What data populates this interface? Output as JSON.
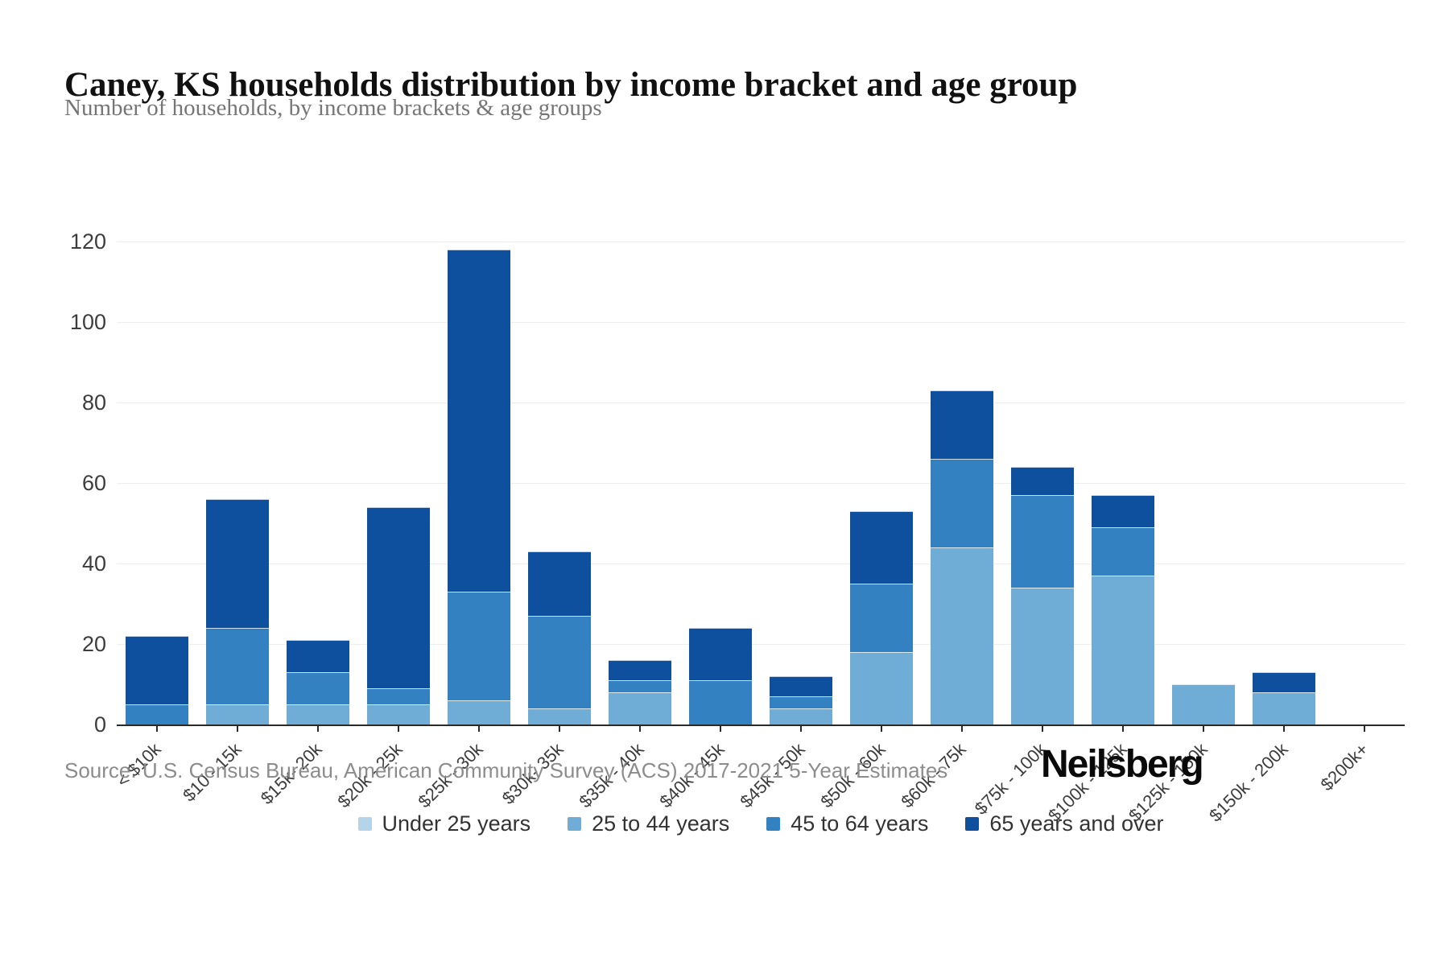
{
  "header": {
    "title": "Caney, KS households distribution by income bracket and age group",
    "subtitle": "Number of households, by income brackets & age groups"
  },
  "footer": {
    "source": "Source: U.S. Census Bureau, American Community Survey (ACS) 2017-2021 5-Year Estimates",
    "logo": "Neilsberg"
  },
  "colors": {
    "under_25": "#b5d4e9",
    "age_25_44": "#6fadd6",
    "age_45_64": "#3381c1",
    "age_65_over": "#0e4f9e",
    "gridline": "#ededed",
    "axis": "#2a2a2a"
  },
  "chart_data": {
    "type": "bar",
    "stacked": true,
    "title": "Caney, KS households distribution by income bracket and age group",
    "subtitle": "Number of households, by income brackets & age groups",
    "xlabel": "",
    "ylabel": "",
    "ylim": [
      0,
      120
    ],
    "yticks": [
      0,
      20,
      40,
      60,
      80,
      100,
      120
    ],
    "grid": true,
    "legend_position": "bottom",
    "categories": [
      "< $10k",
      "$10 - 15k",
      "$15k- 20k",
      "$20k - 25k",
      "$25k - 30k",
      "$30k- 35k",
      "$35k - 40k",
      "$40k - 45k",
      "$45k - 50k",
      "$50k - 60k",
      "$60k - 75k",
      "$75k - 100k",
      "$100k - 125k",
      "$125k - 150k",
      "$150k - 200k",
      "$200k+"
    ],
    "series": [
      {
        "name": "Under 25 years",
        "color": "#b5d4e9",
        "values": [
          0,
          0,
          0,
          0,
          0,
          0,
          0,
          0,
          0,
          0,
          0,
          0,
          0,
          0,
          0,
          0
        ]
      },
      {
        "name": "25 to 44 years",
        "color": "#6fadd6",
        "values": [
          0,
          5,
          5,
          5,
          6,
          4,
          8,
          0,
          4,
          18,
          44,
          34,
          37,
          10,
          8,
          0
        ]
      },
      {
        "name": "45 to 64 years",
        "color": "#3381c1",
        "values": [
          5,
          19,
          8,
          4,
          27,
          23,
          3,
          11,
          3,
          17,
          22,
          23,
          12,
          0,
          0,
          0
        ]
      },
      {
        "name": "65 years and over",
        "color": "#0e4f9e",
        "values": [
          17,
          32,
          8,
          45,
          85,
          16,
          5,
          13,
          5,
          18,
          17,
          7,
          8,
          0,
          5,
          0
        ]
      }
    ],
    "bar_totals": [
      22,
      56,
      21,
      54,
      118,
      43,
      16,
      24,
      12,
      53,
      83,
      64,
      57,
      10,
      13,
      0
    ]
  }
}
